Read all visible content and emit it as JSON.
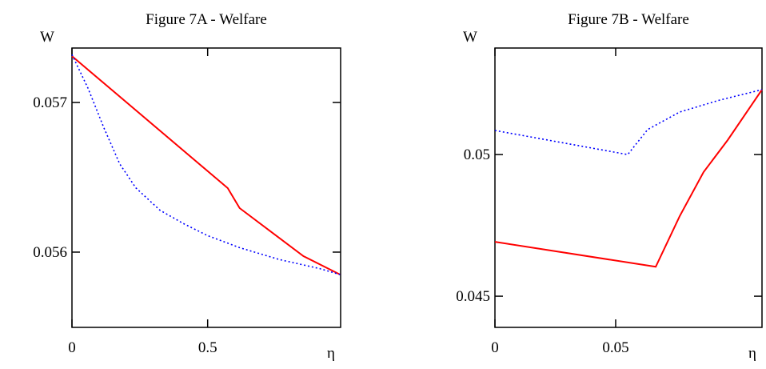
{
  "chart_data": [
    {
      "type": "line",
      "title": "Figure 7A - Welfare",
      "y_label": "W",
      "x_label": "η",
      "xlim": [
        0,
        0.99
      ],
      "ylim": [
        0.055497,
        0.057364
      ],
      "xticks": [
        0,
        0.5
      ],
      "yticks": [
        0.056,
        0.057
      ],
      "series": [
        {
          "color": "#ff0000",
          "style": "solid",
          "x": [
            0,
            0.574,
            0.618,
            0.735,
            0.853,
            0.988
          ],
          "values": [
            0.05731,
            0.056428,
            0.056294,
            0.056134,
            0.055973,
            0.05585
          ]
        },
        {
          "color": "#0000ff",
          "style": "dotted",
          "x": [
            0,
            0.059,
            0.118,
            0.176,
            0.235,
            0.324,
            0.412,
            0.5,
            0.618,
            0.765,
            0.912,
            0.988
          ],
          "values": [
            0.05732,
            0.057096,
            0.05683,
            0.05659,
            0.05643,
            0.05628,
            0.05619,
            0.05611,
            0.05603,
            0.05595,
            0.05589,
            0.05585
          ]
        }
      ]
    },
    {
      "type": "line",
      "title": "Figure 7B - Welfare",
      "y_label": "W",
      "x_label": "η",
      "xlim": [
        0,
        0.1106
      ],
      "ylim": [
        0.0439,
        0.05376
      ],
      "xticks": [
        0,
        0.05
      ],
      "yticks": [
        0.045,
        0.05
      ],
      "series": [
        {
          "color": "#ff0000",
          "style": "solid",
          "x": [
            0,
            0.0666,
            0.0765,
            0.0864,
            0.0964,
            0.1106
          ],
          "values": [
            0.04692,
            0.04604,
            0.04782,
            0.04938,
            0.05051,
            0.05229
          ]
        },
        {
          "color": "#0000ff",
          "style": "dotted",
          "x": [
            0,
            0.055,
            0.0632,
            0.0765,
            0.093,
            0.1106
          ],
          "values": [
            0.05085,
            0.05,
            0.05088,
            0.0515,
            0.05192,
            0.05229
          ]
        }
      ]
    }
  ]
}
